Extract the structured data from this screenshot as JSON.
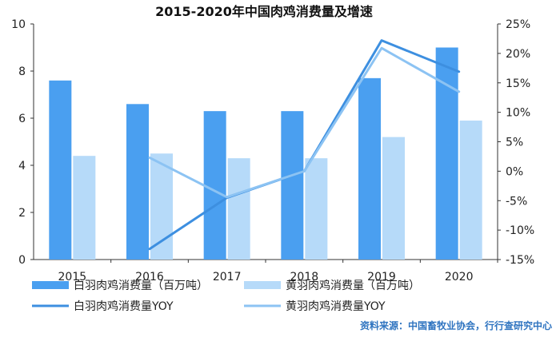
{
  "chart_data": {
    "type": "bar",
    "title": "2015-2020年中国肉鸡消费量及增速",
    "categories": [
      "2015",
      "2016",
      "2017",
      "2018",
      "2019",
      "2020"
    ],
    "y_left": {
      "min": 0,
      "max": 10,
      "ticks": [
        0,
        2,
        4,
        6,
        8,
        10
      ]
    },
    "y_right": {
      "min": -15,
      "max": 25,
      "ticks": [
        "-15%",
        "-10%",
        "-5%",
        "0%",
        "5%",
        "10%",
        "15%",
        "20%",
        "25%"
      ]
    },
    "grid": false,
    "legend_position": "bottom",
    "series": [
      {
        "name": "白羽肉鸡消费量（百万吨）",
        "type": "bar",
        "axis": "left",
        "color": "#4a9ff0",
        "values": [
          7.6,
          6.6,
          6.3,
          6.3,
          7.7,
          9.0
        ]
      },
      {
        "name": "黄羽肉鸡消费量（百万吨）",
        "type": "bar",
        "axis": "left",
        "color": "#b6daf9",
        "values": [
          4.4,
          4.5,
          4.3,
          4.3,
          5.2,
          5.9
        ]
      },
      {
        "name": "白羽肉鸡消费量YOY",
        "type": "line",
        "axis": "right",
        "color": "#3d8fe0",
        "values": [
          null,
          -13.2,
          -4.5,
          0.0,
          22.2,
          16.9
        ]
      },
      {
        "name": "黄羽肉鸡消费量YOY",
        "type": "line",
        "axis": "right",
        "color": "#8cc3f3",
        "values": [
          null,
          2.3,
          -4.4,
          0.0,
          20.9,
          13.5
        ]
      }
    ],
    "source_note": "资料来源：中国畜牧业协会，行行查研究中心"
  }
}
